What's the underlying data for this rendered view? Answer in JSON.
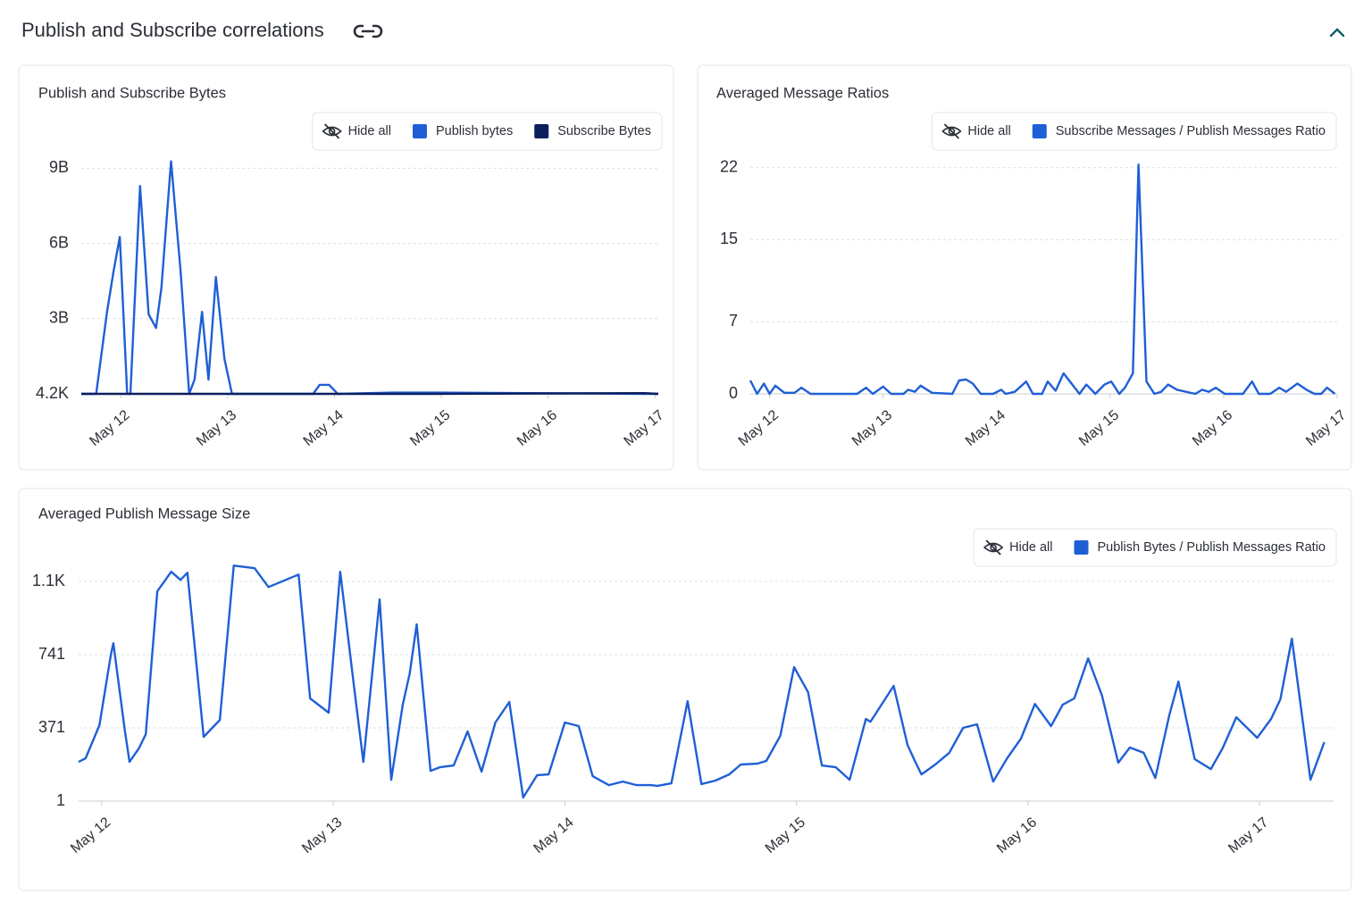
{
  "header": {
    "title": "Publish and Subscribe correlations"
  },
  "chart_data": [
    {
      "type": "line",
      "title": "Publish and Subscribe Bytes",
      "legend_action": "Hide all",
      "x": [
        11.63,
        11.77,
        11.87,
        11.93,
        11.99,
        12.06,
        12.09,
        12.18,
        12.26,
        12.33,
        12.38,
        12.47,
        12.56,
        12.64,
        12.69,
        12.76,
        12.82,
        12.89,
        12.97,
        13.04,
        13.8,
        13.86,
        13.95,
        14.03,
        14.55,
        14.93,
        16.9,
        17.03
      ],
      "series": [
        {
          "name": "Publish bytes",
          "color": "#1f5fd6",
          "values": [
            4200,
            4200,
            3240000000,
            4840000000,
            6260000000,
            4200,
            4200,
            8290000000,
            3170000000,
            2630000000,
            4230000000,
            9280000000,
            4840000000,
            4200,
            570000000,
            3270000000,
            570000000,
            4660000000,
            1390000000,
            4200,
            4200,
            360000000,
            360000000,
            4200,
            50000000,
            50000000,
            4200,
            4200
          ]
        },
        {
          "name": "Subscribe Bytes",
          "color": "#0b1f5c",
          "values": [
            4200,
            4200,
            4200,
            4200,
            4200,
            4200,
            4200,
            4200,
            4200,
            4200,
            4200,
            4200,
            4200,
            4200,
            4200,
            4200,
            4200,
            4200,
            4200,
            4200,
            4200,
            4200,
            4200,
            4200,
            4200,
            4200,
            30000000,
            4200
          ]
        }
      ],
      "xlim": [
        11.63,
        17.03
      ],
      "xticks": [
        {
          "value": 12,
          "label": "May 12"
        },
        {
          "value": 13,
          "label": "May 13"
        },
        {
          "value": 14,
          "label": "May 14"
        },
        {
          "value": 15,
          "label": "May 15"
        },
        {
          "value": 16,
          "label": "May 16"
        },
        {
          "value": 17,
          "label": "May 17"
        }
      ],
      "ylim": [
        4200,
        9300000000
      ],
      "yticks": [
        {
          "value": 4200,
          "label": "4.2K"
        },
        {
          "value": 3000000000,
          "label": "3B"
        },
        {
          "value": 6000000000,
          "label": "6B"
        },
        {
          "value": 9000000000,
          "label": "9B"
        }
      ],
      "grid": true
    },
    {
      "type": "line",
      "title": "Averaged Message Ratios",
      "legend_action": "Hide all",
      "x": [
        11.83,
        11.89,
        11.95,
        12.0,
        12.05,
        12.13,
        12.22,
        12.28,
        12.36,
        12.77,
        12.85,
        12.91,
        13.0,
        13.07,
        13.18,
        13.22,
        13.28,
        13.33,
        13.43,
        13.61,
        13.67,
        13.73,
        13.79,
        13.86,
        13.97,
        14.04,
        14.08,
        14.16,
        14.26,
        14.32,
        14.4,
        14.45,
        14.52,
        14.59,
        14.73,
        14.79,
        14.87,
        14.95,
        15.01,
        15.08,
        15.13,
        15.2,
        15.25,
        15.32,
        15.39,
        15.45,
        15.51,
        15.59,
        15.75,
        15.81,
        15.87,
        15.93,
        16.01,
        16.17,
        16.25,
        16.31,
        16.41,
        16.49,
        16.55,
        16.65,
        16.73,
        16.8,
        16.86,
        16.91,
        16.98
      ],
      "series": [
        {
          "name": "Subscribe Messages / Publish Messages Ratio",
          "color": "#1f5fd6",
          "values": [
            1.3,
            0,
            1.0,
            0,
            0.8,
            0.1,
            0.1,
            0.6,
            0,
            0,
            0.6,
            0,
            0.7,
            0,
            0,
            0.4,
            0.2,
            0.8,
            0.1,
            0,
            1.3,
            1.4,
            1.0,
            0,
            0,
            0.4,
            0,
            0.2,
            1.2,
            0,
            0,
            1.2,
            0.3,
            2.0,
            0,
            0.9,
            0,
            0.9,
            1.2,
            0,
            0.6,
            2.0,
            22.3,
            1.2,
            0,
            0.2,
            0.9,
            0.4,
            0,
            0.4,
            0.2,
            0.6,
            0,
            0,
            1.2,
            0,
            0,
            0.6,
            0.2,
            1.0,
            0.4,
            0,
            0,
            0.6,
            0
          ]
        }
      ],
      "xlim": [
        11.83,
        17.0
      ],
      "xticks": [
        {
          "value": 12,
          "label": "May 12"
        },
        {
          "value": 13,
          "label": "May 13"
        },
        {
          "value": 14,
          "label": "May 14"
        },
        {
          "value": 15,
          "label": "May 15"
        },
        {
          "value": 16,
          "label": "May 16"
        },
        {
          "value": 17,
          "label": "May 17"
        }
      ],
      "ylim": [
        0,
        22.5
      ],
      "yticks": [
        0,
        7,
        15,
        22
      ],
      "grid": true
    },
    {
      "type": "line",
      "title": "Averaged Publish Message Size",
      "legend_action": "Hide all",
      "x": [
        11.9,
        11.93,
        11.99,
        12.04,
        12.05,
        12.1,
        12.12,
        12.16,
        12.19,
        12.24,
        12.3,
        12.34,
        12.37,
        12.44,
        12.51,
        12.57,
        12.66,
        12.72,
        12.85,
        12.9,
        12.98,
        13.03,
        13.09,
        13.13,
        13.2,
        13.25,
        13.3,
        13.33,
        13.36,
        13.42,
        13.46,
        13.52,
        13.58,
        13.64,
        13.7,
        13.76,
        13.82,
        13.88,
        13.93,
        14.0,
        14.06,
        14.12,
        14.19,
        14.25,
        14.31,
        14.37,
        14.4,
        14.46,
        14.53,
        14.59,
        14.65,
        14.71,
        14.76,
        14.83,
        14.87,
        14.93,
        14.99,
        15.05,
        15.11,
        15.17,
        15.23,
        15.3,
        15.32,
        15.42,
        15.48,
        15.51,
        15.54,
        15.6,
        15.66,
        15.72,
        15.78,
        15.85,
        15.91,
        15.97,
        16.03,
        16.1,
        16.15,
        16.2,
        16.26,
        16.32,
        16.39,
        16.44,
        16.5,
        16.55,
        16.61,
        16.65,
        16.72,
        16.79,
        16.84,
        16.9,
        16.99,
        17.05,
        17.09,
        17.14,
        17.22,
        17.28
      ],
      "series": [
        {
          "name": "Publish Bytes / Publish Messages Ratio",
          "color": "#1f5fd6",
          "values": [
            199,
            217,
            384,
            745,
            799,
            357,
            199,
            267,
            339,
            1061,
            1160,
            1119,
            1155,
            326,
            411,
            1191,
            1178,
            1083,
            1146,
            520,
            448,
            1160,
            574,
            199,
            1020,
            109,
            488,
            646,
            894,
            154,
            172,
            181,
            353,
            150,
            398,
            502,
            19,
            132,
            136,
            398,
            380,
            127,
            82,
            100,
            82,
            82,
            78,
            91,
            506,
            87,
            105,
            136,
            186,
            190,
            204,
            330,
            678,
            552,
            181,
            172,
            109,
            416,
            402,
            583,
            285,
            208,
            136,
            186,
            245,
            371,
            389,
            100,
            217,
            317,
            492,
            380,
            488,
            520,
            722,
            533,
            195,
            272,
            245,
            118,
            434,
            605,
            213,
            163,
            267,
            425,
            321,
            416,
            515,
            822,
            109,
            299
          ]
        }
      ],
      "xlim": [
        11.9,
        17.32
      ],
      "xticks": [
        {
          "value": 12,
          "label": "May 12"
        },
        {
          "value": 13,
          "label": "May 13"
        },
        {
          "value": 14,
          "label": "May 14"
        },
        {
          "value": 15,
          "label": "May 15"
        },
        {
          "value": 16,
          "label": "May 16"
        },
        {
          "value": 17,
          "label": "May 17"
        }
      ],
      "ylim": [
        1,
        1206
      ],
      "yticks": [
        1,
        371,
        741,
        {
          "value": 1111,
          "label": "1.1K"
        }
      ],
      "grid": true
    }
  ]
}
